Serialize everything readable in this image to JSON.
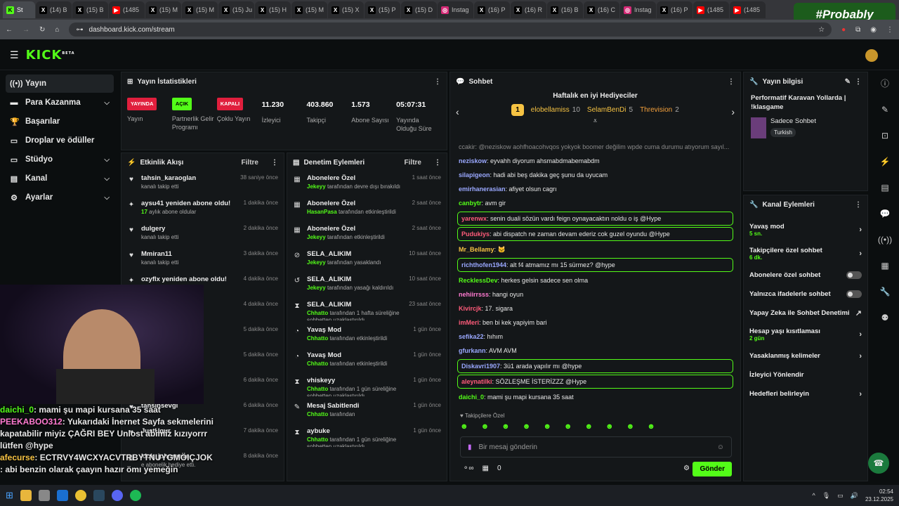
{
  "tabs": [
    {
      "label": "St",
      "fav": "k",
      "active": true
    },
    {
      "label": "(14) B",
      "fav": "x"
    },
    {
      "label": "(15) B",
      "fav": "x"
    },
    {
      "label": "(1485",
      "fav": "y"
    },
    {
      "label": "(15) M",
      "fav": "x"
    },
    {
      "label": "(15) M",
      "fav": "x"
    },
    {
      "label": "(15) Ju",
      "fav": "x"
    },
    {
      "label": "(15) H",
      "fav": "x"
    },
    {
      "label": "(15) M",
      "fav": "x"
    },
    {
      "label": "(15) X",
      "fav": "x"
    },
    {
      "label": "(15) P",
      "fav": "x"
    },
    {
      "label": "(15) D",
      "fav": "x"
    },
    {
      "label": "Instag",
      "fav": "i"
    },
    {
      "label": "(16) P",
      "fav": "x"
    },
    {
      "label": "(16) R",
      "fav": "x"
    },
    {
      "label": "(16) B",
      "fav": "x"
    },
    {
      "label": "(16) C",
      "fav": "x"
    },
    {
      "label": "Instag",
      "fav": "i"
    },
    {
      "label": "(16) P",
      "fav": "x"
    },
    {
      "label": "(1485",
      "fav": "y"
    },
    {
      "label": "(1485",
      "fav": "y"
    }
  ],
  "watermark": "#Probably",
  "url": "dashboard.kick.com/stream",
  "logo": "KICK",
  "logo_sup": "BETA",
  "nav": [
    {
      "label": "Yayın",
      "icon": "((•))",
      "active": true
    },
    {
      "label": "Para Kazanma",
      "icon": "▬",
      "chev": "⌵"
    },
    {
      "label": "Başarılar",
      "icon": "🏆"
    },
    {
      "label": "Droplar ve ödüller",
      "icon": "▭"
    },
    {
      "label": "Stüdyo",
      "icon": "▭",
      "chev": "⌵"
    },
    {
      "label": "Kanal",
      "icon": "▤",
      "chev": "⌵"
    },
    {
      "label": "Ayarlar",
      "icon": "⚙",
      "chev": "⌵"
    }
  ],
  "stats": {
    "title": "Yayın İstatistikleri",
    "items": [
      {
        "badge": "YAYINDA",
        "color": "red",
        "label": "Yayın"
      },
      {
        "badge": "AÇIK",
        "color": "green",
        "label": "Partnerlik Gelir Programı"
      },
      {
        "badge": "KAPALI",
        "color": "red",
        "label": "Çoklu Yayın"
      },
      {
        "num": "11.230",
        "label": "İzleyici"
      },
      {
        "num": "403.860",
        "label": "Takipçi"
      },
      {
        "num": "1.573",
        "label": "Abone Sayısı"
      },
      {
        "num": "05:07:31",
        "label": "Yayında Olduğu Süre"
      }
    ]
  },
  "activity": {
    "title": "Etkinlik Akışı",
    "filter": "Filtre",
    "rows": [
      {
        "icon": "♥",
        "name": "tahsin_karaoglan",
        "desc": "kanalı takip etti",
        "time": "38 saniye önce"
      },
      {
        "icon": "✦",
        "name": "aysu41 yeniden abone oldu!",
        "desc_b": "17",
        "desc": "aylık abone oldular",
        "time": "1 dakika önce"
      },
      {
        "icon": "♥",
        "name": "dulgery",
        "desc": "kanalı takip etti",
        "time": "2 dakika önce"
      },
      {
        "icon": "♥",
        "name": "Mmiran11",
        "desc": "kanalı takip etti",
        "time": "3 dakika önce"
      },
      {
        "icon": "✦",
        "name": "ozyflx yeniden abone oldu!",
        "desc": "",
        "time": "4 dakika önce"
      },
      {
        "icon": "✦",
        "name": "one oldu!",
        "desc": "",
        "time": "4 dakika önce"
      },
      {
        "icon": "♥",
        "name": "",
        "desc": "",
        "time": "5 dakika önce"
      },
      {
        "icon": "♥",
        "name": "",
        "desc": "",
        "time": "5 dakika önce"
      },
      {
        "icon": "♥",
        "name": "",
        "desc": "",
        "time": "6 dakika önce"
      },
      {
        "icon": "♥",
        "name": "tahsinsevgi",
        "desc": "",
        "time": "6 dakika önce"
      },
      {
        "icon": "♥",
        "name": "JustUgur",
        "desc": "",
        "time": "7 dakika önce"
      },
      {
        "icon": "▦",
        "name": "kick_johnreese",
        "desc": "e abonelik hediye etti.",
        "time": "8 dakika önce"
      }
    ]
  },
  "moderation": {
    "title": "Denetim Eylemleri",
    "filter": "Filtre",
    "rows": [
      {
        "icon": "▦",
        "name": "Abonelere Özel",
        "who": "Jekeyy",
        "desc": "tarafından devre dışı bırakıldı",
        "time": "1 saat önce"
      },
      {
        "icon": "▦",
        "name": "Abonelere Özel",
        "who": "HasanPasa",
        "desc": "tarafından etkinleştirildi",
        "time": "2 saat önce"
      },
      {
        "icon": "▦",
        "name": "Abonelere Özel",
        "who": "Jekeyy",
        "desc": "tarafından etkinleştirildi",
        "time": "2 saat önce"
      },
      {
        "icon": "⊘",
        "name": "SELA_ALIKIM",
        "who": "Jekeyy",
        "desc": "tarafından yasaklandı",
        "time": "10 saat önce"
      },
      {
        "icon": "↺",
        "name": "SELA_ALIKIM",
        "who": "Jekeyy",
        "desc": "tarafından yasağı kaldırıldı",
        "time": "10 saat önce"
      },
      {
        "icon": "⧗",
        "name": "SELA_ALIKIM",
        "who": "Chhatto",
        "desc": "tarafından 1 hafta süreliğine sohbetten uzaklaştırıldı",
        "time": "23 saat önce"
      },
      {
        "icon": "◔",
        "name": "Yavaş Mod",
        "who": "Chhatto",
        "desc": "tarafından etkinleştirildi",
        "time": "1 gün önce"
      },
      {
        "icon": "◔",
        "name": "Yavaş Mod",
        "who": "Chhatto",
        "desc": "tarafından etkinleştirildi",
        "time": "1 gün önce"
      },
      {
        "icon": "⧗",
        "name": "vhiskeyy",
        "who": "Chhatto",
        "desc": "tarafından 1 gün süreliğine sohbetten uzaklaştırıldı",
        "time": "1 gün önce"
      },
      {
        "icon": "✎",
        "name": "Mesaj Sabitlendi",
        "who": "Chhatto",
        "desc": "tarafından",
        "time": "1 gün önce"
      },
      {
        "icon": "⧗",
        "name": "aybuke",
        "who": "Chhatto",
        "desc": "tarafından 1 gün süreliğine sohbetten uzaklaştırıldı",
        "time": "1 gün önce"
      }
    ]
  },
  "chat": {
    "title": "Sohbet",
    "gift_title": "Haftalık en iyi Hediyeciler",
    "gifters": [
      {
        "name": "elobellamiss",
        "count": "10"
      },
      {
        "name": "SelamBenDi",
        "count": "5"
      },
      {
        "name": "Threvision",
        "count": "2"
      }
    ],
    "rank": "1",
    "messages": [
      {
        "user": "",
        "text": "ccakir: @neziskow aohfhoacohvqos yokyok boomer değilim wpde cuma durumu atıyorum sayıl...",
        "color": "#888",
        "hl": false
      },
      {
        "user": "neziskow",
        "text": ": eyvahh diyorum ahsmabdmabemabdm",
        "color": "#9aa8ff"
      },
      {
        "user": "silapigeon",
        "text": ": hadi abi beş dakika geç şunu da uyucam",
        "color": "#9aa8ff"
      },
      {
        "user": "emirhanerasian",
        "text": ": afiyet olsun cagrı",
        "color": "#9aa8ff"
      },
      {
        "user": "canbytr",
        "text": ": avm gir",
        "color": "#53fc18"
      },
      {
        "user": "yarenwx",
        "text": ": senin duali sözün vardı feign oynayacaktın noldu o iş @Hype",
        "color": "#ff5b7a",
        "hl": true
      },
      {
        "user": "Pudukiys",
        "text": ": abi dispatch ne zaman devam ederiz cok guzel oyundu @Hype",
        "color": "#ff5b7a",
        "hl": true
      },
      {
        "user": "Mr_Bellamy",
        "text": ": 🐱",
        "color": "#f6c343"
      },
      {
        "user": "richthofen1944",
        "text": ": alt f4 atmamız mı 15 sürmez? @hype",
        "color": "#9aa8ff",
        "hl": true
      },
      {
        "user": "RecklessDev",
        "text": ": herkes gelsin sadece sen olma",
        "color": "#53fc18"
      },
      {
        "user": "nehiirrsss",
        "text": ": hangi oyun",
        "color": "#ff7ad0"
      },
      {
        "user": "Kivircjk",
        "text": ": 17. sigara",
        "color": "#ff5b7a"
      },
      {
        "user": "imMeri",
        "text": ": ben bi kek yapiyim bari",
        "color": "#ff5b7a"
      },
      {
        "user": "sefika22",
        "text": ": hıhım",
        "color": "#9aa8ff"
      },
      {
        "user": "gfurkann",
        "text": ": AVM AVM",
        "color": "#9aa8ff"
      },
      {
        "user": "Diskavri1907",
        "text": ": 3ü1 arada yapılır mı @hype",
        "color": "#9aa8ff",
        "hl": true
      },
      {
        "user": "aleynatilki",
        "text": ": SÖZLEŞME İSTERİZZZ @Hype",
        "color": "#ff5b7a",
        "hl": true
      },
      {
        "user": "daichi_0",
        "text": ": mami şu mapi kursana 35 saat",
        "color": "#53fc18"
      }
    ],
    "followers_only": "Takipçilere Özel",
    "placeholder": "Bir mesaj gönderin",
    "count": "0",
    "send": "Gönder"
  },
  "info": {
    "title": "Yayın bilgisi",
    "stream_title": "Performatif Karavan Yollarda | !klasgame",
    "category": "Sadece Sohbet",
    "lang": "Turkish"
  },
  "channel_actions": {
    "title": "Kanal Eylemleri",
    "rows": [
      {
        "label": "Yavaş mod",
        "sub": "5 sn.",
        "end": "›"
      },
      {
        "label": "Takipçilere özel sohbet",
        "sub": "6 dk.",
        "end": "›"
      },
      {
        "label": "Abonelere özel sohbet",
        "toggle": true
      },
      {
        "label": "Yalnızca ifadelerle sohbet",
        "toggle": true
      },
      {
        "label": "Yapay Zeka ile Sohbet Denetimi",
        "end": "↗"
      },
      {
        "label": "Hesap yaşı kısıtlaması",
        "sub": "2 gün",
        "end": "›"
      },
      {
        "label": "Yasaklanmış kelimeler",
        "end": "›"
      },
      {
        "label": "İzleyici Yönlendir"
      },
      {
        "label": "Hedefleri belirleyin",
        "end": "›"
      }
    ]
  },
  "overlay": [
    {
      "user": "daichi_0",
      "text": ": mami şu mapi kursana 35 saat",
      "color": "#53fc18"
    },
    {
      "user": "PEEKABOO312",
      "text": ": Yukarıdaki İnernet Sayfa sekmelerini kapatabilir miyiz ÇAĞRI BEY Unlost abimiz kızıyorrr lütfen @hype",
      "color": "#ff7ad0"
    },
    {
      "user": "afecurse",
      "text": ": ECTRVY4WCXYACVTRBYTNUYGMÖIÇJOK",
      "color": "#f6c343"
    },
    {
      "user": "",
      "text": ": abi benzin olarak çaayın hazır ömı yemeğin",
      "color": "#fff"
    }
  ],
  "taskbar": {
    "time": "02:54",
    "date": "23.12.2025"
  }
}
